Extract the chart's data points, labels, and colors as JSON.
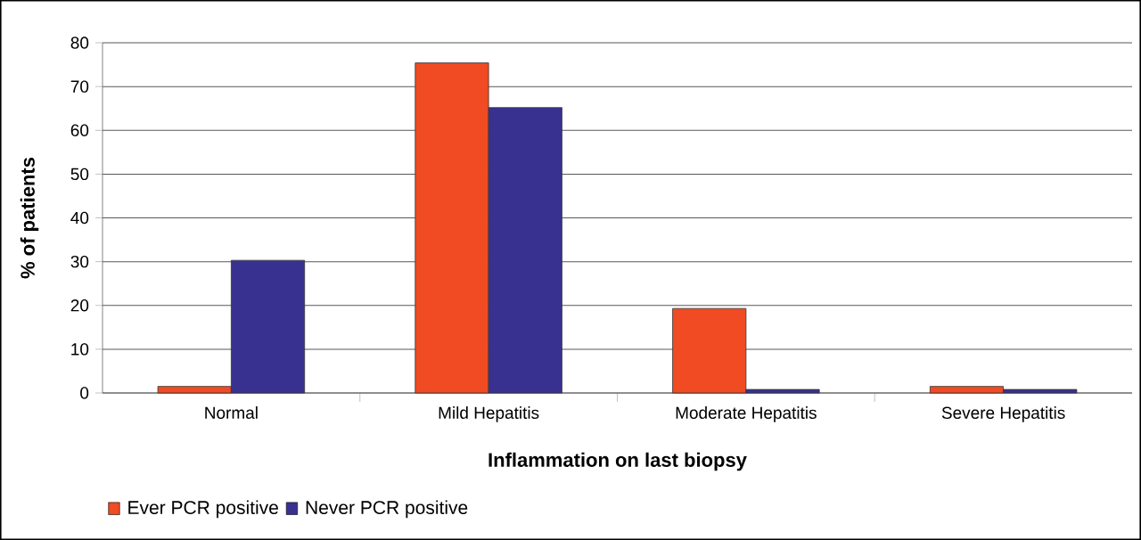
{
  "chart_data": {
    "type": "bar",
    "xlabel": "Inflammation on last biopsy",
    "ylabel": "% of patients",
    "categories": [
      "Normal",
      "Mild Hepatitis",
      "Moderate Hepatitis",
      "Severe Hepatitis"
    ],
    "series": [
      {
        "name": "Ever PCR positive",
        "color": "#f04b22",
        "values": [
          1.5,
          75.4,
          19.3,
          1.5
        ]
      },
      {
        "name": "Never PCR positive",
        "color": "#393190",
        "values": [
          30.3,
          65.2,
          0.8,
          0.8
        ]
      }
    ],
    "ylim": [
      0,
      80
    ],
    "yticks": [
      0,
      10,
      20,
      30,
      40,
      50,
      60,
      70,
      80
    ],
    "grid": "y",
    "legend": "bottom left"
  }
}
